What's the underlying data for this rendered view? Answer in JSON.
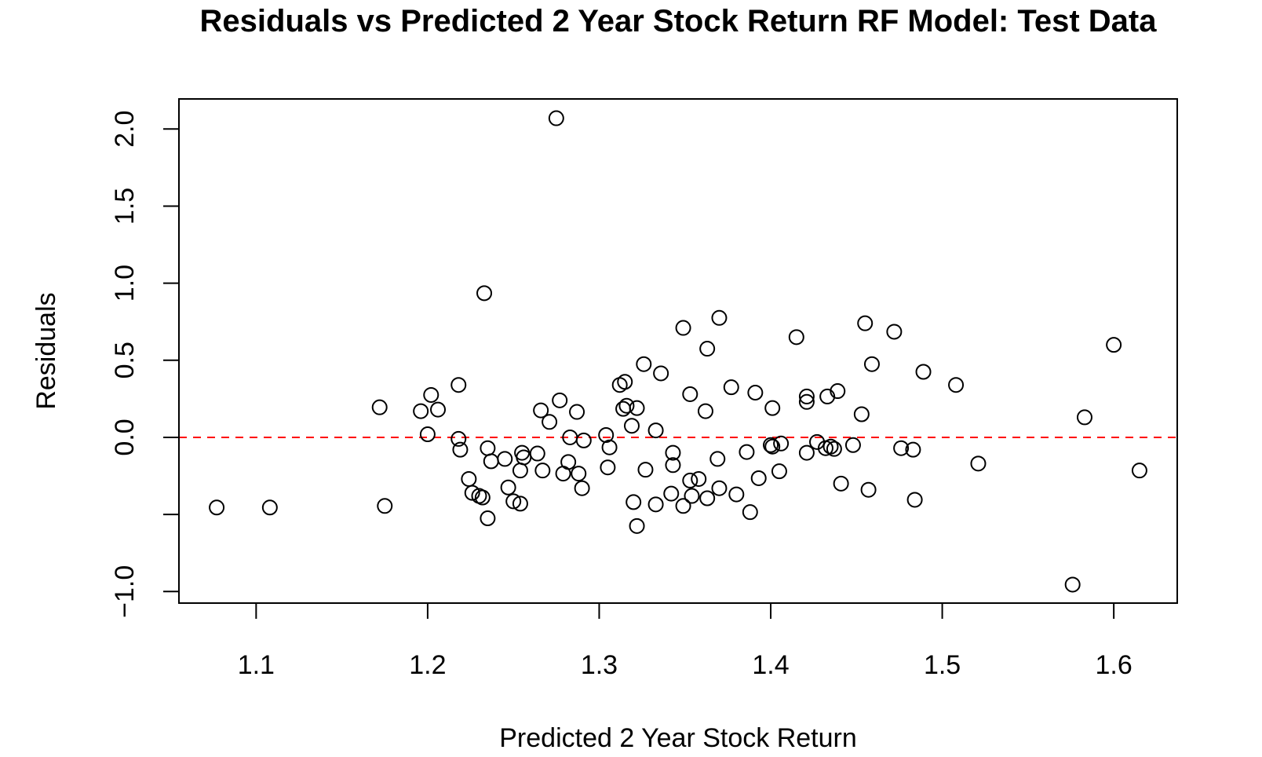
{
  "chart_data": {
    "type": "scatter",
    "title": "Residuals vs Predicted 2 Year Stock Return RF Model: Test Data",
    "xlabel": "Predicted 2 Year Stock Return",
    "ylabel": "Residuals",
    "xlim": [
      1.055,
      1.637
    ],
    "ylim": [
      -1.075,
      2.195
    ],
    "x_ticks": [
      1.1,
      1.2,
      1.3,
      1.4,
      1.5,
      1.6
    ],
    "x_tick_labels": [
      "1.1",
      "1.2",
      "1.3",
      "1.4",
      "1.5",
      "1.6"
    ],
    "y_ticks": [
      -1.0,
      -0.5,
      0.0,
      0.5,
      1.0,
      1.5,
      2.0
    ],
    "y_tick_labels": [
      "−1.0",
      "",
      "0.0",
      "0.5",
      "1.0",
      "1.5",
      "2.0"
    ],
    "reference_line": {
      "y": 0.0,
      "color": "#ff0000",
      "style": "dashed"
    },
    "grid": false,
    "marker": "open-circle",
    "points": [
      {
        "x": 1.077,
        "y": -0.455
      },
      {
        "x": 1.108,
        "y": -0.455
      },
      {
        "x": 1.172,
        "y": 0.195
      },
      {
        "x": 1.175,
        "y": -0.445
      },
      {
        "x": 1.196,
        "y": 0.17
      },
      {
        "x": 1.2,
        "y": 0.02
      },
      {
        "x": 1.202,
        "y": 0.275
      },
      {
        "x": 1.206,
        "y": 0.18
      },
      {
        "x": 1.218,
        "y": 0.34
      },
      {
        "x": 1.218,
        "y": -0.01
      },
      {
        "x": 1.219,
        "y": -0.08
      },
      {
        "x": 1.224,
        "y": -0.27
      },
      {
        "x": 1.226,
        "y": -0.36
      },
      {
        "x": 1.23,
        "y": -0.38
      },
      {
        "x": 1.232,
        "y": -0.39
      },
      {
        "x": 1.233,
        "y": 0.935
      },
      {
        "x": 1.235,
        "y": -0.07
      },
      {
        "x": 1.235,
        "y": -0.525
      },
      {
        "x": 1.237,
        "y": -0.155
      },
      {
        "x": 1.245,
        "y": -0.14
      },
      {
        "x": 1.247,
        "y": -0.325
      },
      {
        "x": 1.25,
        "y": -0.415
      },
      {
        "x": 1.254,
        "y": -0.43
      },
      {
        "x": 1.254,
        "y": -0.215
      },
      {
        "x": 1.255,
        "y": -0.1
      },
      {
        "x": 1.256,
        "y": -0.13
      },
      {
        "x": 1.264,
        "y": -0.105
      },
      {
        "x": 1.266,
        "y": 0.175
      },
      {
        "x": 1.267,
        "y": -0.215
      },
      {
        "x": 1.271,
        "y": 0.1
      },
      {
        "x": 1.275,
        "y": 2.07
      },
      {
        "x": 1.277,
        "y": 0.24
      },
      {
        "x": 1.279,
        "y": -0.235
      },
      {
        "x": 1.282,
        "y": -0.16
      },
      {
        "x": 1.283,
        "y": 0.0
      },
      {
        "x": 1.287,
        "y": 0.165
      },
      {
        "x": 1.288,
        "y": -0.235
      },
      {
        "x": 1.29,
        "y": -0.33
      },
      {
        "x": 1.291,
        "y": -0.02
      },
      {
        "x": 1.304,
        "y": 0.015
      },
      {
        "x": 1.305,
        "y": -0.195
      },
      {
        "x": 1.306,
        "y": -0.065
      },
      {
        "x": 1.312,
        "y": 0.34
      },
      {
        "x": 1.314,
        "y": 0.185
      },
      {
        "x": 1.315,
        "y": 0.36
      },
      {
        "x": 1.316,
        "y": 0.205
      },
      {
        "x": 1.319,
        "y": 0.075
      },
      {
        "x": 1.32,
        "y": -0.42
      },
      {
        "x": 1.322,
        "y": -0.575
      },
      {
        "x": 1.322,
        "y": 0.19
      },
      {
        "x": 1.326,
        "y": 0.475
      },
      {
        "x": 1.327,
        "y": -0.21
      },
      {
        "x": 1.333,
        "y": -0.435
      },
      {
        "x": 1.333,
        "y": 0.045
      },
      {
        "x": 1.336,
        "y": 0.415
      },
      {
        "x": 1.342,
        "y": -0.365
      },
      {
        "x": 1.343,
        "y": -0.1
      },
      {
        "x": 1.343,
        "y": -0.18
      },
      {
        "x": 1.349,
        "y": 0.71
      },
      {
        "x": 1.349,
        "y": -0.445
      },
      {
        "x": 1.353,
        "y": 0.28
      },
      {
        "x": 1.353,
        "y": -0.28
      },
      {
        "x": 1.354,
        "y": -0.38
      },
      {
        "x": 1.358,
        "y": -0.27
      },
      {
        "x": 1.362,
        "y": 0.17
      },
      {
        "x": 1.363,
        "y": 0.575
      },
      {
        "x": 1.363,
        "y": -0.395
      },
      {
        "x": 1.369,
        "y": -0.14
      },
      {
        "x": 1.37,
        "y": 0.775
      },
      {
        "x": 1.37,
        "y": -0.33
      },
      {
        "x": 1.377,
        "y": 0.325
      },
      {
        "x": 1.38,
        "y": -0.37
      },
      {
        "x": 1.386,
        "y": -0.095
      },
      {
        "x": 1.388,
        "y": -0.485
      },
      {
        "x": 1.391,
        "y": 0.29
      },
      {
        "x": 1.393,
        "y": -0.265
      },
      {
        "x": 1.4,
        "y": -0.05
      },
      {
        "x": 1.401,
        "y": -0.06
      },
      {
        "x": 1.401,
        "y": 0.19
      },
      {
        "x": 1.405,
        "y": -0.22
      },
      {
        "x": 1.406,
        "y": -0.04
      },
      {
        "x": 1.415,
        "y": 0.65
      },
      {
        "x": 1.421,
        "y": 0.265
      },
      {
        "x": 1.421,
        "y": 0.23
      },
      {
        "x": 1.421,
        "y": -0.1
      },
      {
        "x": 1.427,
        "y": -0.03
      },
      {
        "x": 1.432,
        "y": -0.07
      },
      {
        "x": 1.433,
        "y": 0.265
      },
      {
        "x": 1.435,
        "y": -0.06
      },
      {
        "x": 1.437,
        "y": -0.075
      },
      {
        "x": 1.439,
        "y": 0.3
      },
      {
        "x": 1.441,
        "y": -0.3
      },
      {
        "x": 1.448,
        "y": -0.05
      },
      {
        "x": 1.453,
        "y": 0.15
      },
      {
        "x": 1.455,
        "y": 0.74
      },
      {
        "x": 1.457,
        "y": -0.34
      },
      {
        "x": 1.459,
        "y": 0.475
      },
      {
        "x": 1.472,
        "y": 0.685
      },
      {
        "x": 1.476,
        "y": -0.07
      },
      {
        "x": 1.483,
        "y": -0.08
      },
      {
        "x": 1.484,
        "y": -0.405
      },
      {
        "x": 1.489,
        "y": 0.425
      },
      {
        "x": 1.508,
        "y": 0.34
      },
      {
        "x": 1.521,
        "y": -0.17
      },
      {
        "x": 1.576,
        "y": -0.955
      },
      {
        "x": 1.583,
        "y": 0.13
      },
      {
        "x": 1.6,
        "y": 0.6
      },
      {
        "x": 1.615,
        "y": -0.215
      }
    ]
  }
}
